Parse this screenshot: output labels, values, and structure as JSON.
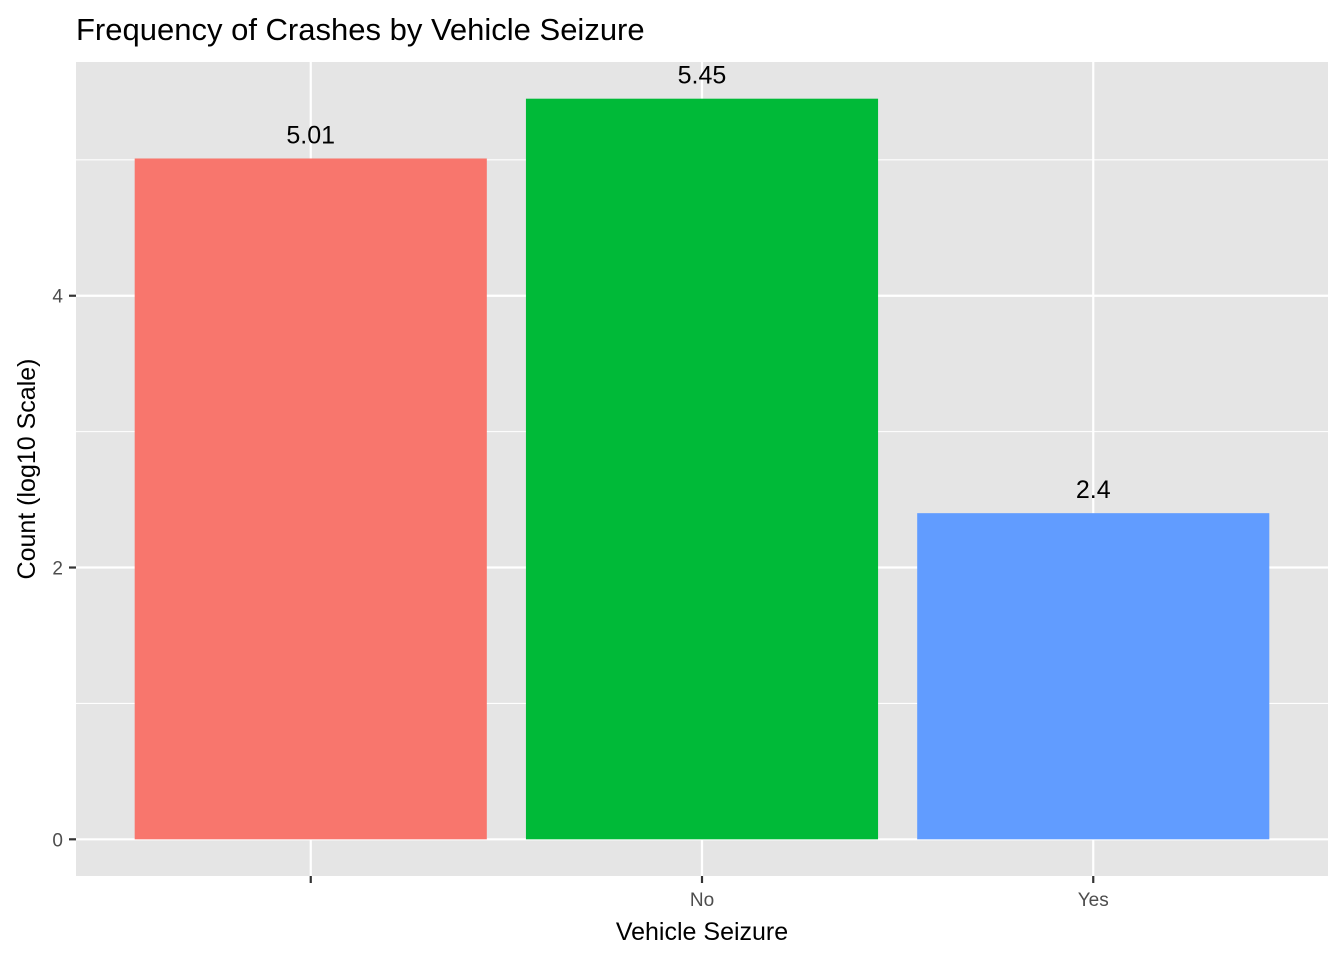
{
  "chart_data": {
    "type": "bar",
    "title": "Frequency of Crashes by Vehicle Seizure",
    "xlabel": "Vehicle Seizure",
    "ylabel": "Count (log10 Scale)",
    "categories": [
      "",
      "No",
      "Yes"
    ],
    "values": [
      5.01,
      5.45,
      2.4
    ],
    "data_labels": [
      "5.01",
      "5.45",
      "2.4"
    ],
    "bar_colors": [
      "#F8766D",
      "#00BA38",
      "#619CFF"
    ],
    "ylim": [
      -0.27,
      5.72
    ],
    "yticks": [
      0,
      2,
      4
    ],
    "ytick_labels": [
      "0",
      "2",
      "4"
    ],
    "yminor_ticks": [
      1,
      3,
      5
    ],
    "grid": true,
    "legend": "none",
    "panel_background": "#E5E5E5",
    "grid_color": "#FFFFFF"
  }
}
